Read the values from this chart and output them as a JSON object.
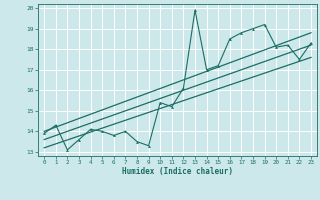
{
  "title": "",
  "xlabel": "Humidex (Indice chaleur)",
  "bg_color": "#cce8ea",
  "grid_color": "#ffffff",
  "line_color": "#1a6e65",
  "xlim": [
    -0.5,
    23.5
  ],
  "ylim": [
    12.8,
    20.2
  ],
  "xticks": [
    0,
    1,
    2,
    3,
    4,
    5,
    6,
    7,
    8,
    9,
    10,
    11,
    12,
    13,
    14,
    15,
    16,
    17,
    18,
    19,
    20,
    21,
    22,
    23
  ],
  "yticks": [
    13,
    14,
    15,
    16,
    17,
    18,
    19,
    20
  ],
  "data_x": [
    0,
    1,
    2,
    3,
    4,
    5,
    6,
    7,
    8,
    9,
    10,
    11,
    12,
    13,
    14,
    15,
    16,
    17,
    18,
    19,
    20,
    21,
    22,
    23
  ],
  "data_y": [
    13.9,
    14.3,
    13.1,
    13.6,
    14.1,
    14.0,
    13.8,
    14.0,
    13.5,
    13.3,
    15.4,
    15.2,
    16.1,
    19.9,
    17.0,
    17.2,
    18.5,
    18.8,
    19.0,
    19.2,
    18.1,
    18.2,
    17.5,
    18.3
  ],
  "line1_y_start": 13.6,
  "line1_y_end": 18.2,
  "line2_y_start": 13.2,
  "line2_y_end": 17.6,
  "line3_y_start": 14.0,
  "line3_y_end": 18.8
}
